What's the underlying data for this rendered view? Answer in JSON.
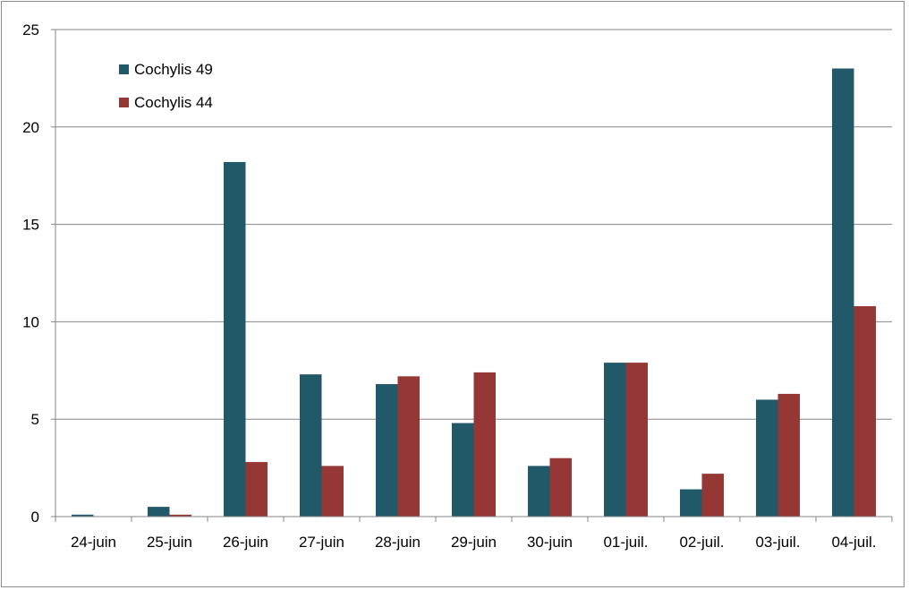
{
  "chart_data": {
    "type": "bar",
    "title": "",
    "xlabel": "",
    "ylabel": "",
    "categories": [
      "24-juin",
      "25-juin",
      "26-juin",
      "27-juin",
      "28-juin",
      "29-juin",
      "30-juin",
      "01-juil.",
      "02-juil.",
      "03-juil.",
      "04-juil."
    ],
    "series": [
      {
        "name": "Cochylis 49",
        "color": "#215968",
        "values": [
          0.1,
          0.5,
          18.2,
          7.3,
          6.8,
          4.8,
          2.6,
          7.9,
          1.4,
          6.0,
          23.0
        ]
      },
      {
        "name": "Cochylis 44",
        "color": "#953735",
        "values": [
          0,
          0.1,
          2.8,
          2.6,
          7.2,
          7.4,
          3.0,
          7.9,
          2.2,
          6.3,
          10.8
        ]
      }
    ],
    "ylim": [
      0,
      25
    ],
    "yticks": [
      0,
      5,
      10,
      15,
      20,
      25
    ],
    "grid": true,
    "legend_position": "top-left"
  }
}
